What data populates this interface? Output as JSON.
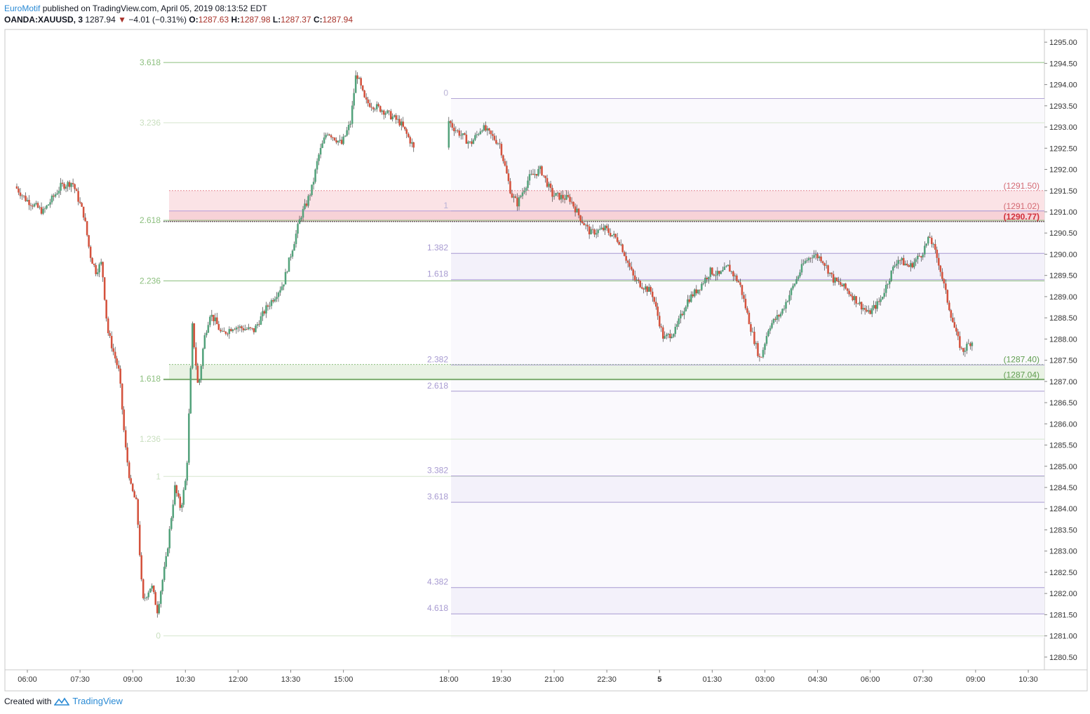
{
  "header": {
    "author": "EuroMotif",
    "published_text": "published on TradingView.com, April 05, 2019 08:13:52 EDT",
    "symbol": "OANDA:XAUUSD, 3",
    "last": "1287.94",
    "change": "−4.01 (−0.31%)",
    "open_label": "O:",
    "open": "1287.63",
    "high_label": "H:",
    "high": "1287.98",
    "low_label": "L:",
    "low": "1287.37",
    "close_label": "C:",
    "close": "1287.94"
  },
  "footer": {
    "created_with": "Created with",
    "brand": "TradingView"
  },
  "colors": {
    "up": "#53a27b",
    "down": "#d4523d",
    "fib_green": "#8cbf7e",
    "fib_purple": "#a79ad1",
    "zone_red": "#fbe3e6",
    "zone_green": "#e9f2e4",
    "grid": "#e6e6e6",
    "price_label": "#d22f3a",
    "green_label": "#5e9d4e"
  },
  "chart_data": {
    "type": "candlestick",
    "title": "OANDA:XAUUSD, 3",
    "y_axis": {
      "ticks": [
        "1280.50",
        "1281.00",
        "1281.50",
        "1282.00",
        "1282.50",
        "1283.00",
        "1283.50",
        "1284.00",
        "1284.50",
        "1285.00",
        "1285.50",
        "1286.00",
        "1286.50",
        "1287.00",
        "1287.50",
        "1288.00",
        "1288.50",
        "1289.00",
        "1289.50",
        "1290.00",
        "1290.50",
        "1291.00",
        "1291.50",
        "1292.00",
        "1292.50",
        "1293.00",
        "1293.50",
        "1294.00",
        "1294.50",
        "1295.00"
      ],
      "range": [
        1280.2,
        1295.3
      ]
    },
    "x_axis": {
      "ticks": [
        "06:00",
        "07:30",
        "09:00",
        "10:30",
        "12:00",
        "13:30",
        "15:00",
        "18:00",
        "19:30",
        "21:00",
        "22:30",
        "5",
        "01:30",
        "03:00",
        "04:30",
        "06:00",
        "07:30",
        "09:00",
        "10:30"
      ]
    },
    "price_path": [
      [
        "05:42",
        1291.6
      ],
      [
        "06:00",
        1291.3
      ],
      [
        "06:30",
        1291.0
      ],
      [
        "07:00",
        1291.6
      ],
      [
        "07:20",
        1291.7
      ],
      [
        "07:40",
        1290.9
      ],
      [
        "07:50",
        1290.0
      ],
      [
        "08:00",
        1289.6
      ],
      [
        "08:10",
        1289.8
      ],
      [
        "08:20",
        1288.2
      ],
      [
        "08:40",
        1287.2
      ],
      [
        "08:50",
        1285.5
      ],
      [
        "09:00",
        1284.5
      ],
      [
        "09:10",
        1284.1
      ],
      [
        "09:20",
        1281.8
      ],
      [
        "09:35",
        1282.2
      ],
      [
        "09:45",
        1281.6
      ],
      [
        "10:00",
        1282.8
      ],
      [
        "10:15",
        1284.5
      ],
      [
        "10:25",
        1284.0
      ],
      [
        "10:35",
        1284.8
      ],
      [
        "10:45",
        1288.3
      ],
      [
        "10:55",
        1286.8
      ],
      [
        "11:05",
        1288.0
      ],
      [
        "11:15",
        1288.6
      ],
      [
        "11:25",
        1288.4
      ],
      [
        "11:35",
        1288.1
      ],
      [
        "11:55",
        1288.3
      ],
      [
        "12:30",
        1288.2
      ],
      [
        "12:50",
        1288.7
      ],
      [
        "13:05",
        1289.0
      ],
      [
        "13:20",
        1289.3
      ],
      [
        "13:35",
        1290.1
      ],
      [
        "13:50",
        1290.9
      ],
      [
        "14:00",
        1291.2
      ],
      [
        "14:10",
        1291.6
      ],
      [
        "14:20",
        1292.3
      ],
      [
        "14:35",
        1292.9
      ],
      [
        "15:00",
        1292.6
      ],
      [
        "15:15",
        1293.1
      ],
      [
        "15:25",
        1294.3
      ],
      [
        "15:40",
        1293.6
      ],
      [
        "16:10",
        1293.4
      ],
      [
        "16:40",
        1293.1
      ],
      [
        "17:00",
        1292.6
      ],
      [
        "17:10",
        1292.2
      ],
      [
        "17:30",
        1293.2
      ],
      [
        "17:50",
        1293.4
      ],
      [
        "18:10",
        1293.0
      ],
      [
        "18:40",
        1292.6
      ],
      [
        "19:00",
        1293.0
      ],
      [
        "19:30",
        1292.6
      ],
      [
        "19:50",
        1291.4
      ],
      [
        "20:00",
        1291.2
      ],
      [
        "20:20",
        1291.8
      ],
      [
        "20:40",
        1292.0
      ],
      [
        "21:00",
        1291.4
      ],
      [
        "21:30",
        1291.3
      ],
      [
        "21:50",
        1290.8
      ],
      [
        "22:05",
        1290.5
      ],
      [
        "22:30",
        1290.6
      ],
      [
        "22:55",
        1290.3
      ],
      [
        "23:20",
        1289.4
      ],
      [
        "23:50",
        1289.1
      ],
      [
        "00:10",
        1288.0
      ],
      [
        "00:30",
        1288.2
      ],
      [
        "00:50",
        1288.9
      ],
      [
        "01:10",
        1289.2
      ],
      [
        "01:30",
        1289.6
      ],
      [
        "01:45",
        1289.5
      ],
      [
        "02:00",
        1289.7
      ],
      [
        "02:20",
        1289.3
      ],
      [
        "02:40",
        1288.2
      ],
      [
        "02:55",
        1287.5
      ],
      [
        "03:10",
        1288.3
      ],
      [
        "03:30",
        1288.6
      ],
      [
        "03:50",
        1289.2
      ],
      [
        "04:10",
        1289.8
      ],
      [
        "04:25",
        1290.0
      ],
      [
        "04:40",
        1289.9
      ],
      [
        "05:00",
        1289.4
      ],
      [
        "05:20",
        1289.2
      ],
      [
        "05:40",
        1288.9
      ],
      [
        "06:00",
        1288.6
      ],
      [
        "06:20",
        1288.9
      ],
      [
        "06:40",
        1289.6
      ],
      [
        "06:50",
        1289.9
      ],
      [
        "07:10",
        1289.7
      ],
      [
        "07:30",
        1290.0
      ],
      [
        "07:45",
        1290.4
      ],
      [
        "08:00",
        1289.8
      ],
      [
        "08:15",
        1288.9
      ],
      [
        "08:30",
        1288.1
      ],
      [
        "08:40",
        1287.7
      ],
      [
        "08:55",
        1287.94
      ]
    ],
    "fib_left": {
      "levels": [
        {
          "label": "3.618",
          "price": 1294.52
        },
        {
          "label": "3.236",
          "price": 1293.1
        },
        {
          "label": "2.618",
          "price": 1290.8
        },
        {
          "label": "2.236",
          "price": 1289.37
        },
        {
          "label": "1.618",
          "price": 1287.06
        },
        {
          "label": "1.236",
          "price": 1285.64
        },
        {
          "label": "1",
          "price": 1284.76
        },
        {
          "label": "0",
          "price": 1281.0
        }
      ]
    },
    "fib_right": {
      "levels": [
        {
          "label": "0",
          "price": 1293.67
        },
        {
          "label": "1",
          "price": 1291.02
        },
        {
          "label": "1.382",
          "price": 1290.02
        },
        {
          "label": "1.618",
          "price": 1289.4
        },
        {
          "label": "2.382",
          "price": 1287.39
        },
        {
          "label": "2.618",
          "price": 1286.77
        },
        {
          "label": "3.382",
          "price": 1284.77
        },
        {
          "label": "3.618",
          "price": 1284.15
        },
        {
          "label": "4.382",
          "price": 1282.14
        },
        {
          "label": "4.618",
          "price": 1281.52
        }
      ]
    },
    "zones": [
      {
        "color": "red",
        "top": 1291.5,
        "bottom": 1290.77,
        "labels": [
          "(1291.50)",
          "(1291.02)",
          "(1290.77)"
        ]
      },
      {
        "color": "green",
        "top": 1287.4,
        "bottom": 1287.04,
        "labels": [
          "(1287.40)",
          "(1287.04)"
        ]
      }
    ]
  }
}
